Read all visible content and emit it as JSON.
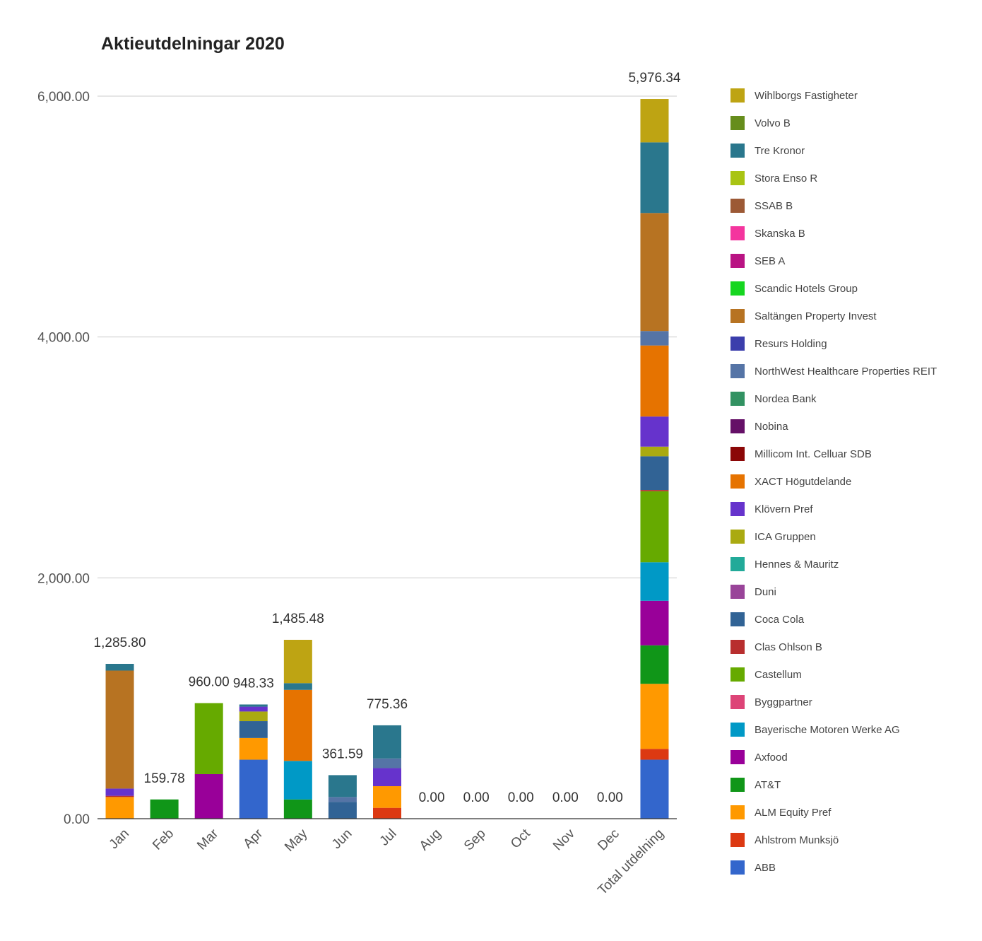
{
  "chart_data": {
    "type": "bar",
    "stacked": true,
    "title": "Aktieutdelningar 2020",
    "xlabel": "",
    "ylabel": "",
    "ylim": [
      0,
      6000
    ],
    "yticks": [
      0,
      2000,
      4000,
      6000
    ],
    "ytick_labels": [
      "0.00",
      "2,000.00",
      "4,000.00",
      "6,000.00"
    ],
    "grid": true,
    "legend_position": "right",
    "categories": [
      "Jan",
      "Feb",
      "Mar",
      "Apr",
      "May",
      "Jun",
      "Jul",
      "Aug",
      "Sep",
      "Oct",
      "Nov",
      "Dec",
      "Total utdelning"
    ],
    "totals": [
      1285.8,
      159.78,
      960.0,
      948.33,
      1485.48,
      361.59,
      775.36,
      0.0,
      0.0,
      0.0,
      0.0,
      0.0,
      5976.34
    ],
    "total_labels": [
      "1,285.80",
      "159.78",
      "960.00",
      "948.33",
      "1,485.48",
      "361.59",
      "775.36",
      "0.00",
      "0.00",
      "0.00",
      "0.00",
      "0.00",
      "5,976.34"
    ],
    "series": [
      {
        "name": "ABB",
        "color": "#3366cc",
        "values": [
          0,
          0,
          0,
          490,
          0,
          0,
          0,
          0,
          0,
          0,
          0,
          0,
          490
        ]
      },
      {
        "name": "Ahlstrom Munksjö",
        "color": "#dc3912",
        "values": [
          0,
          0,
          0,
          0,
          0,
          0,
          90,
          0,
          0,
          0,
          0,
          0,
          90
        ]
      },
      {
        "name": "ALM Equity Pref",
        "color": "#ff9900",
        "values": [
          180,
          0,
          0,
          180,
          0,
          0,
          180,
          0,
          0,
          0,
          0,
          0,
          540
        ]
      },
      {
        "name": "AT&T",
        "color": "#109618",
        "values": [
          0,
          159.78,
          0,
          0,
          159.78,
          0,
          0,
          0,
          0,
          0,
          0,
          0,
          319.56
        ]
      },
      {
        "name": "Axfood",
        "color": "#990099",
        "values": [
          0,
          0,
          370,
          0,
          0,
          0,
          0,
          0,
          0,
          0,
          0,
          0,
          370
        ]
      },
      {
        "name": "Bayerische Motoren Werke AG",
        "color": "#0099c6",
        "values": [
          0,
          0,
          0,
          0,
          320,
          0,
          0,
          0,
          0,
          0,
          0,
          0,
          320
        ]
      },
      {
        "name": "Byggpartner",
        "color": "#dd4477",
        "values": [
          0,
          0,
          0,
          0,
          0,
          0,
          0,
          0,
          0,
          0,
          0,
          0,
          0
        ]
      },
      {
        "name": "Castellum",
        "color": "#66aa00",
        "values": [
          0,
          0,
          590,
          0,
          0,
          0,
          0,
          0,
          0,
          0,
          0,
          0,
          590
        ]
      },
      {
        "name": "Clas Ohlson B",
        "color": "#b82e2e",
        "values": [
          10,
          0,
          0,
          0,
          0,
          0,
          0,
          0,
          0,
          0,
          0,
          0,
          10
        ]
      },
      {
        "name": "Coca Cola",
        "color": "#316395",
        "values": [
          0,
          0,
          0,
          140,
          0,
          140,
          0,
          0,
          0,
          0,
          0,
          0,
          280
        ]
      },
      {
        "name": "Duni",
        "color": "#994499",
        "values": [
          0,
          0,
          0,
          0,
          0,
          0,
          0,
          0,
          0,
          0,
          0,
          0,
          0
        ]
      },
      {
        "name": "Hennes & Mauritz",
        "color": "#22aa99",
        "values": [
          0,
          0,
          0,
          0,
          0,
          0,
          0,
          0,
          0,
          0,
          0,
          0,
          0
        ]
      },
      {
        "name": "ICA Gruppen",
        "color": "#aaaa11",
        "values": [
          0,
          0,
          0,
          80,
          0,
          0,
          0,
          0,
          0,
          0,
          0,
          0,
          80
        ]
      },
      {
        "name": "Klövern Pref",
        "color": "#6633cc",
        "values": [
          60,
          0,
          0,
          40,
          0,
          0,
          150,
          0,
          0,
          0,
          0,
          0,
          250
        ]
      },
      {
        "name": "XACT Högutdelande",
        "color": "#e67300",
        "values": [
          0,
          0,
          0,
          0,
          590,
          0,
          0,
          0,
          0,
          0,
          0,
          0,
          590
        ]
      },
      {
        "name": "Millicom Int. Celluar SDB",
        "color": "#8b0707",
        "values": [
          0,
          0,
          0,
          0,
          0,
          0,
          0,
          0,
          0,
          0,
          0,
          0,
          0
        ]
      },
      {
        "name": "Nobina",
        "color": "#651067",
        "values": [
          0,
          0,
          0,
          0,
          0,
          0,
          0,
          0,
          0,
          0,
          0,
          0,
          0
        ]
      },
      {
        "name": "Nordea Bank",
        "color": "#329262",
        "values": [
          0,
          0,
          0,
          0,
          0,
          0,
          0,
          0,
          0,
          0,
          0,
          0,
          0
        ]
      },
      {
        "name": "NorthWest Healthcare Properties REIT",
        "color": "#5574a6",
        "values": [
          0,
          0,
          0,
          0,
          0,
          40,
          80,
          0,
          0,
          0,
          0,
          0,
          120
        ]
      },
      {
        "name": "Resurs Holding",
        "color": "#3b3eac",
        "values": [
          0,
          0,
          0,
          0,
          0,
          0,
          0,
          0,
          0,
          0,
          0,
          0,
          0
        ]
      },
      {
        "name": "Saltängen Property Invest",
        "color": "#b77322",
        "values": [
          980,
          0,
          0,
          0,
          0,
          0,
          0,
          0,
          0,
          0,
          0,
          0,
          980
        ]
      },
      {
        "name": "Scandic Hotels Group",
        "color": "#16d620",
        "values": [
          0,
          0,
          0,
          0,
          0,
          0,
          0,
          0,
          0,
          0,
          0,
          0,
          0
        ]
      },
      {
        "name": "SEB A",
        "color": "#b91383",
        "values": [
          0,
          0,
          0,
          0,
          0,
          0,
          0,
          0,
          0,
          0,
          0,
          0,
          0
        ]
      },
      {
        "name": "Skanska B",
        "color": "#f4359e",
        "values": [
          0,
          0,
          0,
          0,
          0,
          0,
          0,
          0,
          0,
          0,
          0,
          0,
          0
        ]
      },
      {
        "name": "SSAB B",
        "color": "#9c5935",
        "values": [
          0,
          0,
          0,
          0,
          0,
          0,
          0,
          0,
          0,
          0,
          0,
          0,
          0
        ]
      },
      {
        "name": "Stora Enso R",
        "color": "#a9c413",
        "values": [
          0,
          0,
          0,
          0,
          0,
          0,
          0,
          0,
          0,
          0,
          0,
          0,
          0
        ]
      },
      {
        "name": "Tre Kronor",
        "color": "#2a778d",
        "values": [
          55.8,
          0,
          0,
          18.33,
          55.7,
          181.59,
          275.36,
          0,
          0,
          0,
          0,
          0,
          586.78
        ]
      },
      {
        "name": "Volvo B",
        "color": "#668d1c",
        "values": [
          0,
          0,
          0,
          0,
          0,
          0,
          0,
          0,
          0,
          0,
          0,
          0,
          0
        ]
      },
      {
        "name": "Wihlborgs Fastigheter",
        "color": "#bea413",
        "values": [
          0,
          0,
          0,
          0,
          360,
          0,
          0,
          0,
          0,
          0,
          0,
          0,
          360
        ]
      }
    ]
  }
}
